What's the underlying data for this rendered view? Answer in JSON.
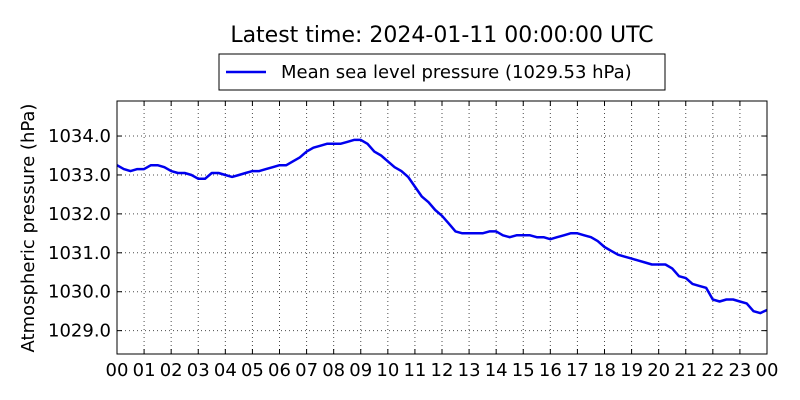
{
  "chart_data": {
    "type": "line",
    "title": "Latest time: 2024-01-11 00:00:00 UTC",
    "xlabel": "",
    "ylabel": "Atmospheric pressure (hPa)",
    "xlim": [
      0,
      24
    ],
    "ylim": [
      1028.4,
      1034.9
    ],
    "grid": true,
    "legend_placement": "top-center",
    "x_ticks": [
      0,
      1,
      2,
      3,
      4,
      5,
      6,
      7,
      8,
      9,
      10,
      11,
      12,
      13,
      14,
      15,
      16,
      17,
      18,
      19,
      20,
      21,
      22,
      23,
      24
    ],
    "x_tick_labels": [
      "00",
      "01",
      "02",
      "03",
      "04",
      "05",
      "06",
      "07",
      "08",
      "09",
      "10",
      "11",
      "12",
      "13",
      "14",
      "15",
      "16",
      "17",
      "18",
      "19",
      "20",
      "21",
      "22",
      "23",
      "00"
    ],
    "y_ticks": [
      1029.0,
      1030.0,
      1031.0,
      1032.0,
      1033.0,
      1034.0
    ],
    "y_tick_labels": [
      "1029.0",
      "1030.0",
      "1031.0",
      "1032.0",
      "1033.0",
      "1034.0"
    ],
    "series": [
      {
        "name": "Mean sea level pressure (1029.53 hPa)",
        "color": "#0000ee",
        "x": [
          0,
          0.25,
          0.5,
          0.75,
          1,
          1.25,
          1.5,
          1.75,
          2,
          2.25,
          2.5,
          2.75,
          3,
          3.25,
          3.5,
          3.75,
          4,
          4.25,
          4.5,
          4.75,
          5,
          5.25,
          5.5,
          5.75,
          6,
          6.25,
          6.5,
          6.75,
          7,
          7.25,
          7.5,
          7.75,
          8,
          8.25,
          8.5,
          8.75,
          9,
          9.25,
          9.5,
          9.75,
          10,
          10.25,
          10.5,
          10.75,
          11,
          11.25,
          11.5,
          11.75,
          12,
          12.25,
          12.5,
          12.75,
          13,
          13.25,
          13.5,
          13.75,
          14,
          14.25,
          14.5,
          14.75,
          15,
          15.25,
          15.5,
          15.75,
          16,
          16.25,
          16.5,
          16.75,
          17,
          17.25,
          17.5,
          17.75,
          18,
          18.25,
          18.5,
          18.75,
          19,
          19.25,
          19.5,
          19.75,
          20,
          20.25,
          20.5,
          20.75,
          21,
          21.25,
          21.5,
          21.75,
          22,
          22.25,
          22.5,
          22.75,
          23,
          23.25,
          23.5,
          23.75,
          24
        ],
        "y": [
          1033.25,
          1033.15,
          1033.1,
          1033.15,
          1033.15,
          1033.25,
          1033.25,
          1033.2,
          1033.1,
          1033.05,
          1033.05,
          1033.0,
          1032.9,
          1032.9,
          1033.05,
          1033.05,
          1033.0,
          1032.95,
          1033.0,
          1033.05,
          1033.1,
          1033.1,
          1033.15,
          1033.2,
          1033.25,
          1033.25,
          1033.35,
          1033.45,
          1033.6,
          1033.7,
          1033.75,
          1033.8,
          1033.8,
          1033.8,
          1033.85,
          1033.9,
          1033.9,
          1033.8,
          1033.6,
          1033.5,
          1033.35,
          1033.2,
          1033.1,
          1032.95,
          1032.7,
          1032.45,
          1032.3,
          1032.1,
          1031.95,
          1031.75,
          1031.55,
          1031.5,
          1031.5,
          1031.5,
          1031.5,
          1031.55,
          1031.55,
          1031.45,
          1031.4,
          1031.45,
          1031.45,
          1031.45,
          1031.4,
          1031.4,
          1031.35,
          1031.4,
          1031.45,
          1031.5,
          1031.5,
          1031.45,
          1031.4,
          1031.3,
          1031.15,
          1031.05,
          1030.95,
          1030.9,
          1030.85,
          1030.8,
          1030.75,
          1030.7,
          1030.7,
          1030.7,
          1030.6,
          1030.4,
          1030.35,
          1030.2,
          1030.15,
          1030.1,
          1029.8,
          1029.75,
          1029.8,
          1029.8,
          1029.75,
          1029.7,
          1029.5,
          1029.45,
          1029.53
        ]
      }
    ]
  }
}
